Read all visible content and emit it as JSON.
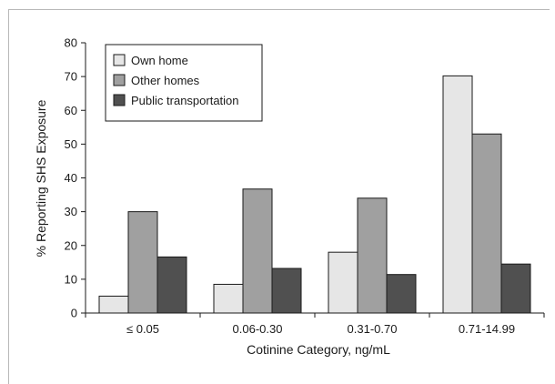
{
  "chart_data": {
    "type": "bar",
    "title": "",
    "xlabel": "Cotinine Category, ng/mL",
    "ylabel": "% Reporting SHS Exposure",
    "ylim": [
      0,
      80
    ],
    "yticks": [
      0,
      10,
      20,
      30,
      40,
      50,
      60,
      70,
      80
    ],
    "categories": [
      "≤ 0.05",
      "0.06-0.30",
      "0.31-0.70",
      "0.71-14.99"
    ],
    "series": [
      {
        "name": "Own home",
        "color": "#e6e6e6",
        "values": [
          5.0,
          8.5,
          18.0,
          70.2
        ]
      },
      {
        "name": "Other homes",
        "color": "#a0a0a0",
        "values": [
          30.0,
          36.7,
          34.0,
          53.0
        ]
      },
      {
        "name": "Public transportation",
        "color": "#505050",
        "values": [
          16.6,
          13.2,
          11.4,
          14.5
        ]
      }
    ],
    "legend_position": "top-left",
    "grid": false
  }
}
